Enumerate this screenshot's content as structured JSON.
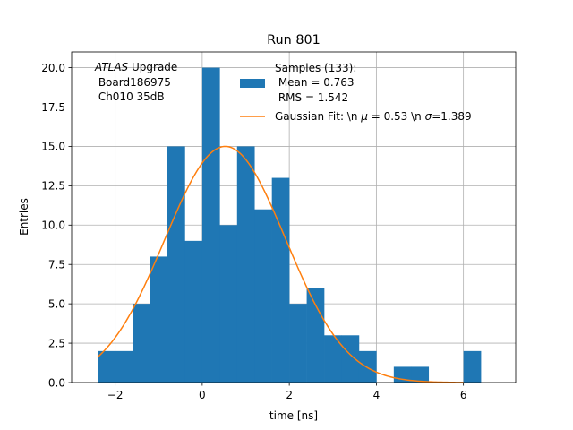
{
  "chart_data": {
    "type": "bar",
    "title": "Run 801",
    "xlabel": "time [ns]",
    "ylabel": "Entries",
    "xlim": [
      -3.0,
      7.2
    ],
    "ylim": [
      0,
      21
    ],
    "grid": true,
    "xticks": [
      -2,
      0,
      2,
      4,
      6
    ],
    "xtick_labels": [
      "−2",
      "0",
      "2",
      "4",
      "6"
    ],
    "yticks": [
      0,
      2.5,
      5,
      7.5,
      10,
      12.5,
      15,
      17.5,
      20
    ],
    "ytick_labels": [
      "0.0",
      "2.5",
      "5.0",
      "7.5",
      "10.0",
      "12.5",
      "15.0",
      "17.5",
      "20.0"
    ],
    "bin_width": 0.4,
    "bin_starts": [
      -2.4,
      -2.0,
      -1.6,
      -1.2,
      -0.8,
      -0.4,
      0.0,
      0.4,
      0.8,
      1.2,
      1.6,
      2.0,
      2.4,
      2.8,
      3.2,
      3.6,
      4.0,
      4.4,
      4.8,
      5.2,
      5.6,
      6.0
    ],
    "counts": [
      2,
      2,
      5,
      8,
      15,
      9,
      20,
      10,
      15,
      11,
      13,
      5,
      6,
      3,
      3,
      2,
      0,
      1,
      1,
      0,
      0,
      2
    ],
    "bar_color": "#1f77b4",
    "fit": {
      "type": "gaussian",
      "amplitude": 15.0,
      "mu": 0.53,
      "sigma": 1.389,
      "x_start": -2.4,
      "x_end": 6.0,
      "color": "#ff7f0e"
    },
    "annotation_lines": [
      "ATLAS Upgrade",
      " Board186975",
      " Ch010 35dB"
    ],
    "annotation_italic_word": "ATLAS",
    "annotation_plain": " Upgrade",
    "legend_position": "top-right",
    "legend": [
      {
        "kind": "patch",
        "lines": [
          "Samples (133):",
          " Mean = 0.763",
          " RMS = 1.542"
        ],
        "color": "#1f77b4"
      },
      {
        "kind": "line",
        "text_prefix": "Gaussian Fit: \\n ",
        "mu_symbol": "μ",
        "mu_text": " = 0.53 \\n ",
        "sigma_symbol": "σ",
        "sigma_text": "=1.389",
        "color": "#ff7f0e"
      }
    ]
  }
}
